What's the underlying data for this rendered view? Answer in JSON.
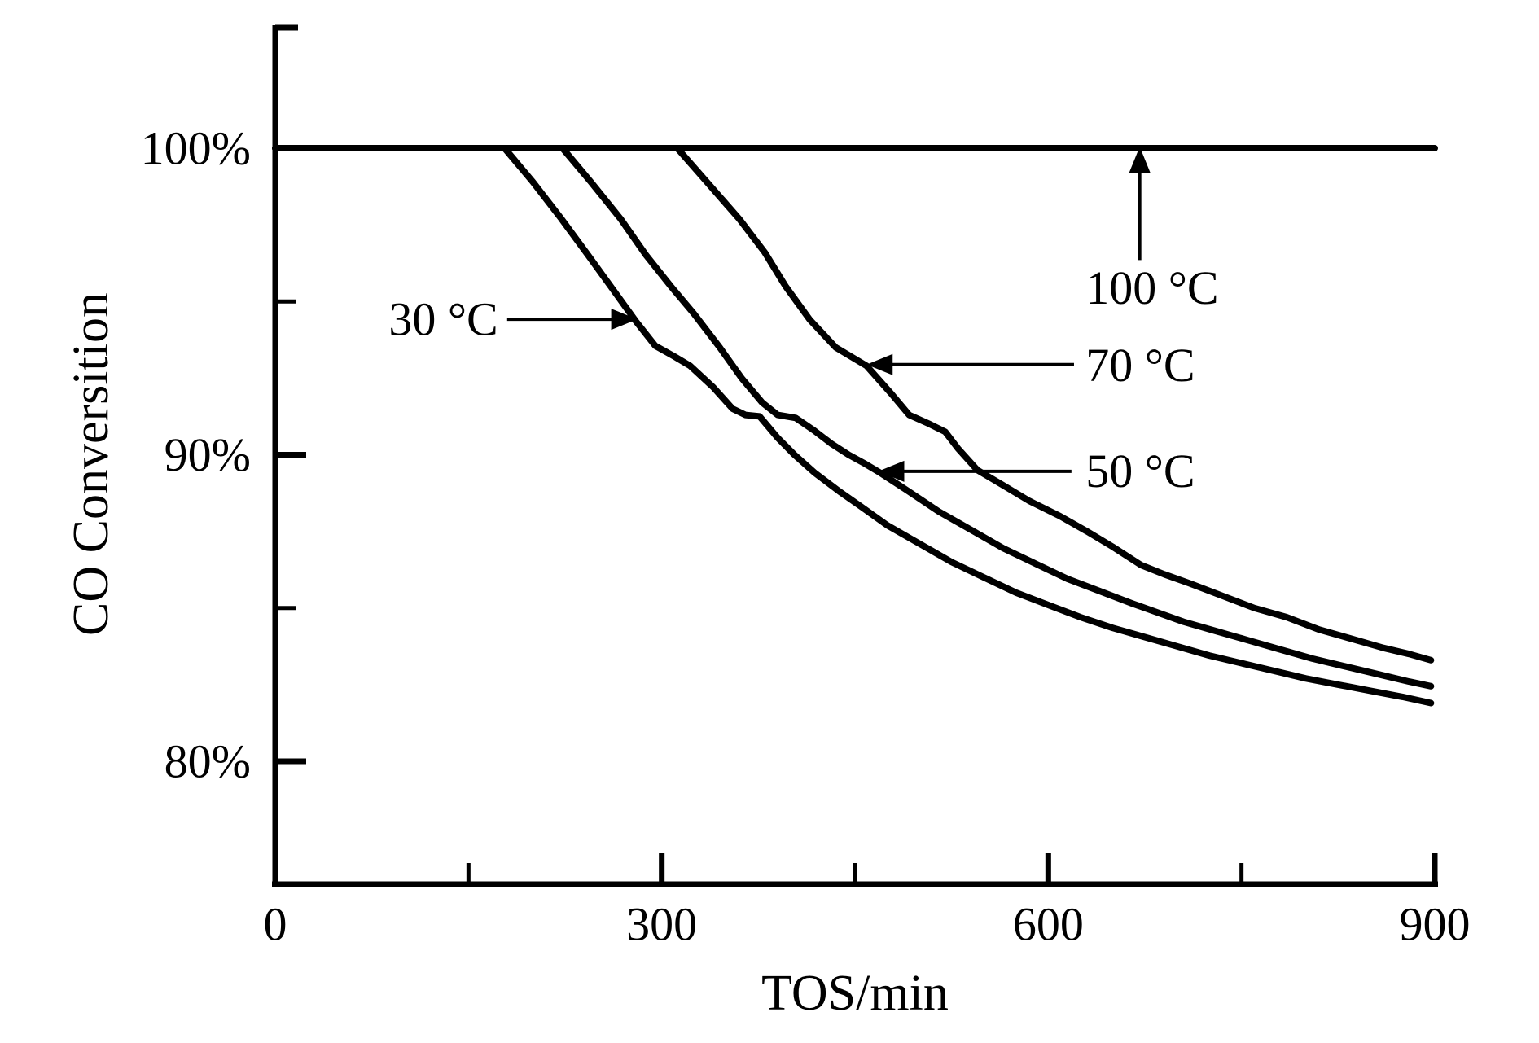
{
  "figure": {
    "background": "#ffffff",
    "ink_color": "#000000"
  },
  "chart_data": {
    "type": "line",
    "title": "",
    "xlabel": "TOS/min",
    "ylabel": "CO Conversition",
    "grid": false,
    "legend_position": "none",
    "line_color": "#000000",
    "background": "#ffffff",
    "x_axis": {
      "min": 0,
      "max": 900,
      "major": [
        {
          "t": 0,
          "label": "0"
        },
        {
          "t": 300,
          "label": "300"
        },
        {
          "t": 600,
          "label": "600"
        },
        {
          "t": 900,
          "label": "900"
        }
      ],
      "minor_t": [
        150,
        450,
        750
      ]
    },
    "y_axis": {
      "unit": "percent",
      "min_pct": 76,
      "max_pct": 104,
      "major": [
        {
          "v": 100,
          "label": "100%"
        },
        {
          "v": 90,
          "label": "90%"
        },
        {
          "v": 80,
          "label": "80%"
        }
      ],
      "minor_v": [
        95,
        85
      ]
    },
    "series": [
      {
        "name": "100 °C",
        "id": "100c",
        "points": [
          [
            0,
            100
          ],
          [
            900,
            100
          ]
        ]
      },
      {
        "name": "70 °C",
        "id": "70c",
        "points": [
          [
            0,
            100
          ],
          [
            312,
            100
          ],
          [
            335,
            98.9
          ],
          [
            360,
            97.7
          ],
          [
            380,
            96.6
          ],
          [
            396,
            95.5
          ],
          [
            415,
            94.4
          ],
          [
            435,
            93.5
          ],
          [
            459,
            92.9
          ],
          [
            478,
            92.0
          ],
          [
            492,
            91.3
          ],
          [
            508,
            91.0
          ],
          [
            520,
            90.75
          ],
          [
            530,
            90.2
          ],
          [
            545,
            89.5
          ],
          [
            565,
            89.0
          ],
          [
            585,
            88.5
          ],
          [
            609,
            88.0
          ],
          [
            630,
            87.5
          ],
          [
            650,
            87.0
          ],
          [
            672,
            86.4
          ],
          [
            690,
            86.1
          ],
          [
            710,
            85.8
          ],
          [
            735,
            85.4
          ],
          [
            760,
            85.0
          ],
          [
            785,
            84.7
          ],
          [
            810,
            84.3
          ],
          [
            835,
            84.0
          ],
          [
            860,
            83.7
          ],
          [
            880,
            83.5
          ],
          [
            897,
            83.3
          ]
        ]
      },
      {
        "name": "50 °C",
        "id": "50c",
        "points": [
          [
            0,
            100
          ],
          [
            223,
            100
          ],
          [
            245,
            98.9
          ],
          [
            268,
            97.7
          ],
          [
            288,
            96.5
          ],
          [
            307,
            95.5
          ],
          [
            325,
            94.6
          ],
          [
            345,
            93.5
          ],
          [
            362,
            92.5
          ],
          [
            378,
            91.7
          ],
          [
            390,
            91.3
          ],
          [
            404,
            91.2
          ],
          [
            418,
            90.8
          ],
          [
            432,
            90.35
          ],
          [
            445,
            90.0
          ],
          [
            458,
            89.7
          ],
          [
            470,
            89.4
          ],
          [
            490,
            88.85
          ],
          [
            515,
            88.15
          ],
          [
            540,
            87.55
          ],
          [
            565,
            86.95
          ],
          [
            590,
            86.45
          ],
          [
            615,
            85.95
          ],
          [
            640,
            85.55
          ],
          [
            665,
            85.15
          ],
          [
            685,
            84.85
          ],
          [
            705,
            84.55
          ],
          [
            730,
            84.25
          ],
          [
            755,
            83.95
          ],
          [
            780,
            83.65
          ],
          [
            805,
            83.35
          ],
          [
            830,
            83.1
          ],
          [
            855,
            82.85
          ],
          [
            880,
            82.6
          ],
          [
            897,
            82.45
          ]
        ]
      },
      {
        "name": "30 °C",
        "id": "30c",
        "points": [
          [
            0,
            100
          ],
          [
            178,
            100
          ],
          [
            200,
            98.9
          ],
          [
            222,
            97.7
          ],
          [
            243,
            96.5
          ],
          [
            262,
            95.4
          ],
          [
            280,
            94.35
          ],
          [
            295,
            93.55
          ],
          [
            310,
            93.2
          ],
          [
            322,
            92.9
          ],
          [
            340,
            92.2
          ],
          [
            355,
            91.5
          ],
          [
            365,
            91.3
          ],
          [
            376,
            91.25
          ],
          [
            390,
            90.55
          ],
          [
            403,
            90.0
          ],
          [
            419,
            89.4
          ],
          [
            438,
            88.8
          ],
          [
            455,
            88.3
          ],
          [
            475,
            87.7
          ],
          [
            500,
            87.1
          ],
          [
            525,
            86.5
          ],
          [
            550,
            86.0
          ],
          [
            575,
            85.5
          ],
          [
            600,
            85.1
          ],
          [
            625,
            84.7
          ],
          [
            650,
            84.35
          ],
          [
            675,
            84.05
          ],
          [
            700,
            83.75
          ],
          [
            725,
            83.45
          ],
          [
            750,
            83.2
          ],
          [
            775,
            82.95
          ],
          [
            800,
            82.7
          ],
          [
            825,
            82.5
          ],
          [
            850,
            82.3
          ],
          [
            875,
            82.1
          ],
          [
            897,
            81.9
          ]
        ]
      }
    ],
    "annotations": [
      {
        "id": "100c",
        "label": "100 °C",
        "orient": "v",
        "arrow_t": 671,
        "arrow_from_v": 96.35,
        "arrow_to_v": 100.05,
        "label_t": 629,
        "label_v": 94.93,
        "align": "start"
      },
      {
        "id": "70c",
        "label": "70 °C",
        "orient": "h",
        "arrow_v": 92.94,
        "arrow_from_t": 620,
        "arrow_to_t": 459,
        "label_t": 629,
        "label_v": 92.4,
        "align": "start"
      },
      {
        "id": "50c",
        "label": "50 °C",
        "orient": "h",
        "arrow_v": 89.46,
        "arrow_from_t": 618,
        "arrow_to_t": 468,
        "label_t": 629,
        "label_v": 88.95,
        "align": "start"
      },
      {
        "id": "30c",
        "label": "30 °C",
        "orient": "h",
        "arrow_v": 94.42,
        "arrow_from_t": 180,
        "arrow_to_t": 281,
        "label_t": 173,
        "label_v": 93.9,
        "align": "end"
      }
    ]
  }
}
